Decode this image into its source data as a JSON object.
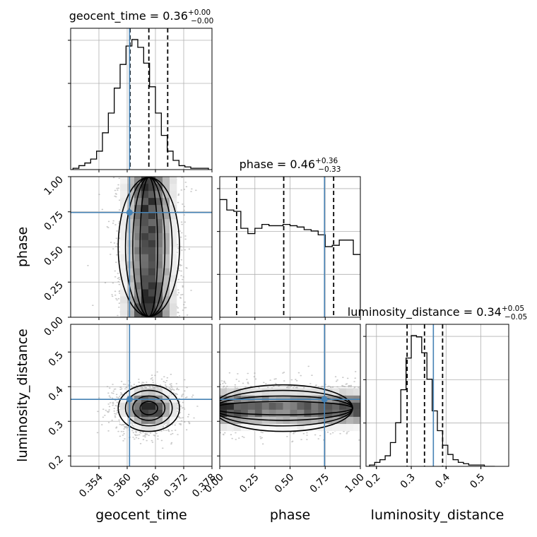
{
  "chart_data": {
    "type": "corner",
    "parameters": [
      {
        "name": "geocent_time",
        "label": "geocent_time",
        "title": "geocent_time = 0.36",
        "title_plus": "+0.00",
        "title_minus": "−0.00",
        "range": [
          0.348,
          0.378
        ],
        "ticks": [
          0.354,
          0.36,
          0.366,
          0.372,
          0.378
        ],
        "tick_labels": [
          "0.354",
          "0.360",
          "0.366",
          "0.372",
          "0.378"
        ],
        "truth": 0.3605,
        "quantiles": [
          0.3606,
          0.3646,
          0.3686
        ],
        "hist_edges_start": 0.3485,
        "hist_bin_width": 0.00125,
        "hist_counts": [
          0.01,
          0.03,
          0.05,
          0.08,
          0.14,
          0.28,
          0.43,
          0.62,
          0.8,
          0.94,
          0.99,
          0.93,
          0.81,
          0.63,
          0.43,
          0.26,
          0.14,
          0.07,
          0.03,
          0.02,
          0.01,
          0.01,
          0.01
        ]
      },
      {
        "name": "phase",
        "label": "phase",
        "title": "phase = 0.46",
        "title_plus": "+0.36",
        "title_minus": "−0.33",
        "range": [
          0.0,
          1.0
        ],
        "ticks": [
          0.0,
          0.25,
          0.5,
          0.75,
          1.0
        ],
        "tick_labels": [
          "0.00",
          "0.25",
          "0.50",
          "0.75",
          "1.00"
        ],
        "truth": 0.745,
        "quantiles": [
          0.12,
          0.455,
          0.81
        ],
        "hist_edges_start": 0.0,
        "hist_bin_width": 0.05,
        "hist_counts": [
          0.9,
          0.82,
          0.81,
          0.68,
          0.64,
          0.68,
          0.71,
          0.7,
          0.7,
          0.71,
          0.7,
          0.69,
          0.67,
          0.66,
          0.63,
          0.54,
          0.55,
          0.59,
          0.59,
          0.48
        ]
      },
      {
        "name": "luminosity_distance",
        "label": "luminosity_distance",
        "title": "luminosity_distance = 0.34",
        "title_plus": "+0.05",
        "title_minus": "−0.05",
        "range": [
          0.17,
          0.58
        ],
        "ticks": [
          0.2,
          0.3,
          0.4,
          0.5
        ],
        "tick_labels": [
          "0.2",
          "0.3",
          "0.4",
          "0.5"
        ],
        "truth": 0.3635,
        "quantiles": [
          0.288,
          0.338,
          0.39
        ],
        "hist_edges_start": 0.18,
        "hist_bin_width": 0.015,
        "hist_counts": [
          0.01,
          0.03,
          0.05,
          0.08,
          0.18,
          0.33,
          0.58,
          0.82,
          0.99,
          0.98,
          0.86,
          0.66,
          0.42,
          0.27,
          0.16,
          0.09,
          0.05,
          0.03,
          0.02,
          0.01,
          0.01,
          0.01,
          0.0,
          0.0
        ]
      }
    ],
    "truth_color": "#4682b4",
    "grid": true,
    "legend": "none"
  }
}
